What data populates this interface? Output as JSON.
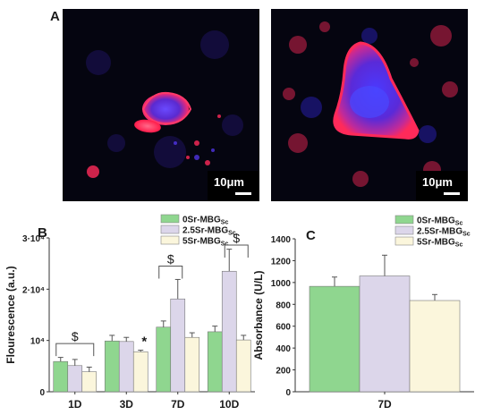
{
  "panel_labels": {
    "a": "A",
    "b": "B",
    "c": "C"
  },
  "micrographs": [
    {
      "scale_label": "10μm"
    },
    {
      "scale_label": "10μm"
    }
  ],
  "colors": {
    "series_0": "#8fd68f",
    "series_1": "#dcd6ea",
    "series_2": "#fbf6dc",
    "micro_background": "#050510",
    "micro_red": "#ff2a5a",
    "micro_blue": "#3a2aff"
  },
  "chart_data": [
    {
      "type": "bar",
      "panel": "B",
      "ylabel": "Flourescence  (a.u.)",
      "xlabel": "",
      "categories": [
        "1D",
        "3D",
        "7D",
        "10D"
      ],
      "ylim": [
        0,
        30000
      ],
      "yticks": [
        {
          "value": 0,
          "label": "0"
        },
        {
          "value": 10000,
          "label": "10⁴"
        },
        {
          "value": 20000,
          "label": "2·10⁴"
        },
        {
          "value": 30000,
          "label": "3·10⁴"
        }
      ],
      "legend_position": "top-right",
      "series": [
        {
          "name": "0Sr-MBG",
          "name_sub": "Sc",
          "values": [
            5900,
            9900,
            12600,
            11700
          ],
          "errors": [
            800,
            1100,
            1200,
            1100
          ]
        },
        {
          "name": "2.5Sr-MBG",
          "name_sub": "Sc",
          "values": [
            5100,
            9800,
            18100,
            23500
          ],
          "errors": [
            1200,
            800,
            3800,
            4300
          ]
        },
        {
          "name": "5Sr-MBG",
          "name_sub": "Sc",
          "values": [
            3900,
            7800,
            10600,
            10100
          ],
          "errors": [
            900,
            300,
            900,
            900
          ]
        }
      ],
      "annotations": [
        {
          "text": "$",
          "category": "1D"
        },
        {
          "text": "*",
          "category": "3D"
        },
        {
          "text": "$",
          "category": "7D"
        },
        {
          "text": "$",
          "category": "10D"
        }
      ]
    },
    {
      "type": "bar",
      "panel": "C",
      "ylabel": "Absorbance  (U/L)",
      "xlabel": "",
      "categories": [
        "7D"
      ],
      "ylim": [
        0,
        1400
      ],
      "yticks": [
        {
          "value": 0,
          "label": "0"
        },
        {
          "value": 200,
          "label": "200"
        },
        {
          "value": 400,
          "label": "400"
        },
        {
          "value": 600,
          "label": "600"
        },
        {
          "value": 800,
          "label": "800"
        },
        {
          "value": 1000,
          "label": "1000"
        },
        {
          "value": 1200,
          "label": "1200"
        },
        {
          "value": 1400,
          "label": "1400"
        }
      ],
      "legend_position": "top-right",
      "series": [
        {
          "name": "0Sr-MBG",
          "name_sub": "Sc",
          "values": [
            965
          ],
          "errors": [
            85
          ]
        },
        {
          "name": "2.5Sr-MBG",
          "name_sub": "Sc",
          "values": [
            1060
          ],
          "errors": [
            190
          ]
        },
        {
          "name": "5Sr-MBG",
          "name_sub": "Sc",
          "values": [
            835
          ],
          "errors": [
            55
          ]
        }
      ]
    }
  ]
}
